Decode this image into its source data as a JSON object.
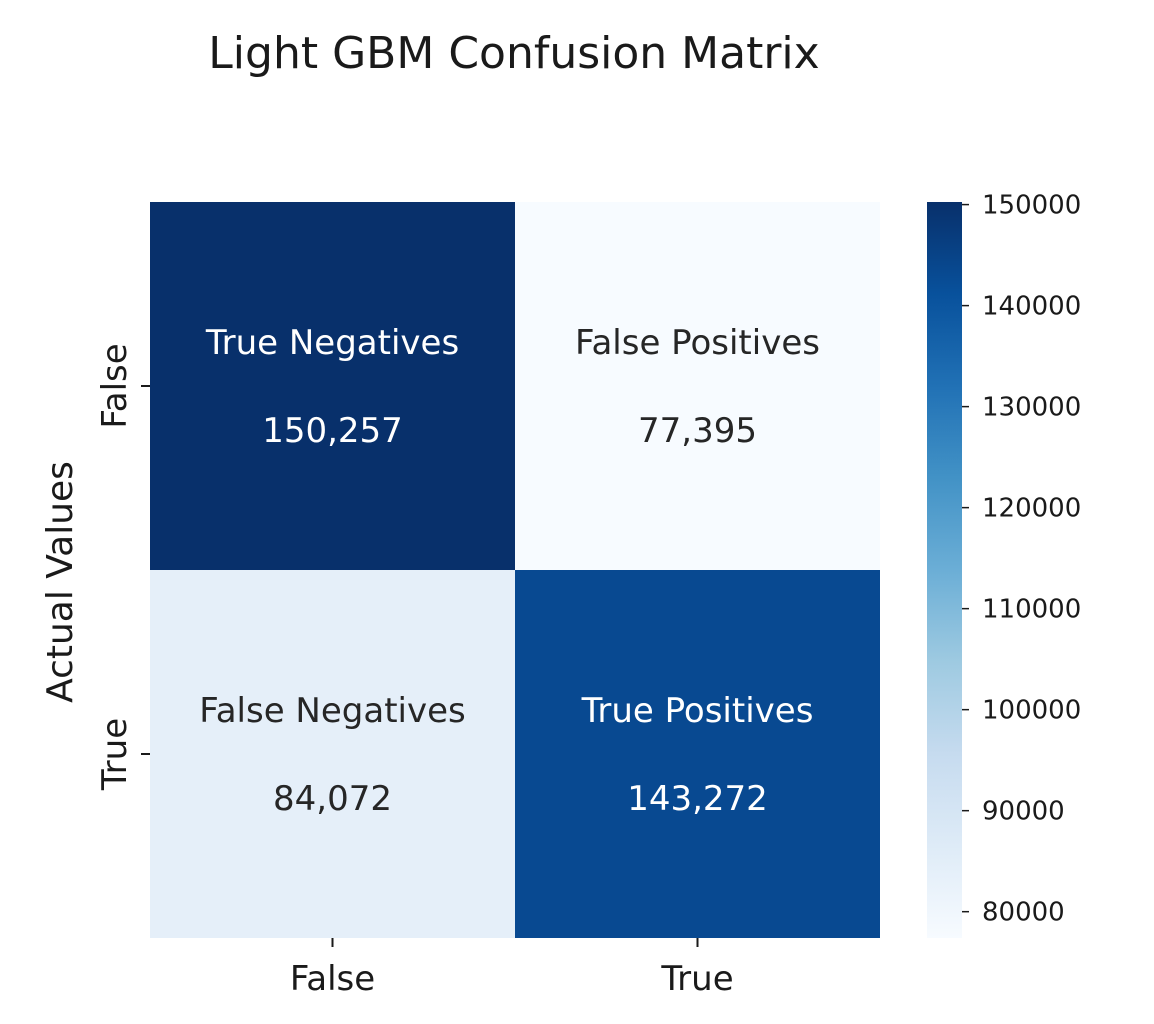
{
  "chart_data": {
    "type": "heatmap",
    "title": "Light GBM Confusion Matrix",
    "xlabel": "",
    "ylabel": "Actual Values",
    "x_tick_labels": [
      "False",
      "True"
    ],
    "y_tick_labels": [
      "False",
      "True"
    ],
    "cells": [
      [
        {
          "label": "True Negatives",
          "value": 150257,
          "display": "150,257"
        },
        {
          "label": "False Positives",
          "value": 77395,
          "display": "77,395"
        }
      ],
      [
        {
          "label": "False Negatives",
          "value": 84072,
          "display": "84,072"
        },
        {
          "label": "True Positives",
          "value": 143272,
          "display": "143,272"
        }
      ]
    ],
    "colormap": "Blues",
    "colorbar": {
      "vmin": 77395,
      "vmax": 150257,
      "ticks": [
        80000,
        90000,
        100000,
        110000,
        120000,
        130000,
        140000,
        150000
      ]
    }
  }
}
